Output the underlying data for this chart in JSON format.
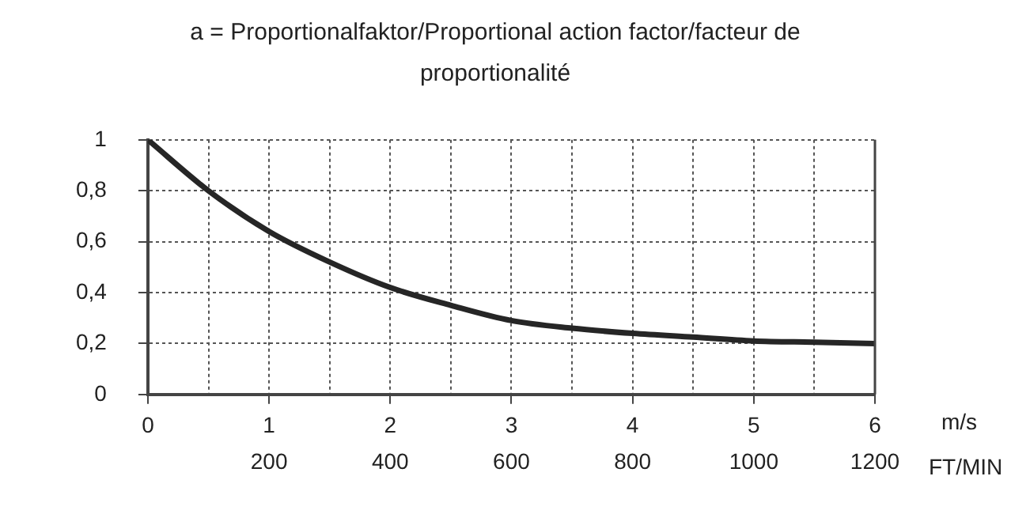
{
  "chart_data": {
    "type": "line",
    "title": "a = Proportionalfaktor/Proportional action factor/facteur de proportionalité",
    "x": [
      0,
      0.5,
      1,
      1.5,
      2,
      2.5,
      3,
      3.5,
      4,
      4.5,
      5,
      5.5,
      6
    ],
    "series": [
      {
        "color": "#262626",
        "values": [
          1,
          0.8,
          0.64,
          0.52,
          0.42,
          0.35,
          0.29,
          0.26,
          0.24,
          0.225,
          0.21,
          0.205,
          0.2
        ]
      }
    ],
    "xlim": [
      0,
      6
    ],
    "xticks": [
      0,
      {
        "value": 0.5,
        "label": null
      },
      1,
      {
        "value": 1.5,
        "label": null
      },
      2,
      {
        "value": 2.5,
        "label": null
      },
      3,
      {
        "value": 3.5,
        "label": null
      },
      4,
      {
        "value": 4.5,
        "label": null
      },
      5,
      {
        "value": 5.5,
        "label": null
      },
      6
    ],
    "ylim": [
      0,
      1
    ],
    "yticks": [
      0,
      {
        "value": 0.2,
        "label": "0,2"
      },
      {
        "value": 0.4,
        "label": "0,4"
      },
      {
        "value": 0.6,
        "label": "0,6"
      },
      {
        "value": 0.8,
        "label": "0,8"
      },
      1
    ],
    "x2lim": [
      0,
      1200
    ],
    "x2ticks": [
      200,
      400,
      600,
      800,
      1000,
      1200
    ],
    "xlabel": "m/s",
    "x2label": "FT/MIN",
    "grid": true,
    "legend": false,
    "marker": "none",
    "line_style": "solid"
  }
}
